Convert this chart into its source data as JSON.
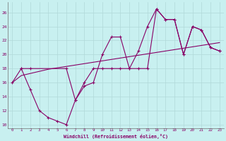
{
  "xlabel": "Windchill (Refroidissement éolien,°C)",
  "bg_color": "#c8f0f0",
  "grid_color": "#b0d8d8",
  "line_color": "#880066",
  "xlim": [
    -0.5,
    23.5
  ],
  "ylim": [
    9.5,
    27.5
  ],
  "xticks": [
    0,
    1,
    2,
    3,
    4,
    5,
    6,
    7,
    8,
    9,
    10,
    11,
    12,
    13,
    14,
    15,
    16,
    17,
    18,
    19,
    20,
    21,
    22,
    23
  ],
  "yticks": [
    10,
    12,
    14,
    16,
    18,
    20,
    22,
    24,
    26
  ],
  "line1_x": [
    0,
    1,
    2,
    3,
    4,
    5,
    6,
    7,
    8,
    9,
    10,
    11,
    12,
    13,
    14,
    15,
    16,
    17,
    18,
    19,
    20,
    21,
    22,
    23
  ],
  "line1_y": [
    16,
    18,
    15,
    12,
    11,
    10.5,
    10,
    13.5,
    15.5,
    16,
    20,
    22.5,
    22.5,
    18,
    20.5,
    24,
    26.5,
    25,
    25,
    20,
    24,
    23.5,
    21,
    20.5
  ],
  "line2_x": [
    0,
    1,
    2,
    3,
    4,
    5,
    6,
    7,
    8,
    9,
    10,
    11,
    12,
    13,
    14,
    15,
    16,
    17,
    18,
    19,
    20,
    21,
    22,
    23
  ],
  "line2_y": [
    16,
    17,
    17.3,
    17.6,
    17.9,
    18.1,
    18.3,
    18.5,
    18.7,
    18.9,
    19.1,
    19.3,
    19.5,
    19.7,
    19.9,
    20.1,
    20.3,
    20.5,
    20.7,
    20.9,
    21.1,
    21.3,
    21.5,
    21.7
  ],
  "line3_x": [
    1,
    2,
    6,
    7,
    8,
    9,
    10,
    11,
    12,
    13,
    14,
    15,
    16,
    17,
    18,
    19,
    20,
    21,
    22,
    23
  ],
  "line3_y": [
    18,
    18,
    18,
    13.5,
    16,
    18,
    18,
    18,
    18,
    18,
    18,
    18,
    26.5,
    25,
    25,
    20,
    24,
    23.5,
    21,
    20.5
  ]
}
